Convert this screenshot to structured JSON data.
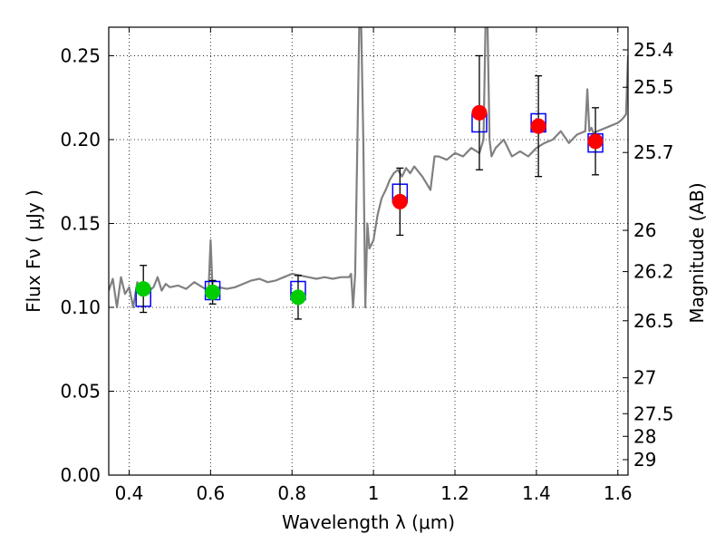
{
  "chart_data": {
    "type": "scatter",
    "xlabel": "Wavelength  λ (μm)",
    "ylabel": "Flux  Fν  ( μJy )",
    "ylabel_right": "Magnitude (AB)",
    "xlim": [
      0.35,
      1.625
    ],
    "ylim": [
      0.0,
      0.267
    ],
    "grid": true,
    "x_ticks": [
      0.4,
      0.6,
      0.8,
      1.0,
      1.2,
      1.4,
      1.6
    ],
    "x_tick_labels": [
      "0.4",
      "0.6",
      "0.8",
      "1",
      "1.2",
      "1.4",
      "1.6"
    ],
    "y_ticks": [
      0.0,
      0.05,
      0.1,
      0.15,
      0.2,
      0.25
    ],
    "y_tick_labels": [
      "0.00",
      "0.05",
      "0.10",
      "0.15",
      "0.20",
      "0.25"
    ],
    "right_ticks": [
      {
        "label": "25.4",
        "flux": 0.2535
      },
      {
        "label": "25.5",
        "flux": 0.2312
      },
      {
        "label": "25.7",
        "flux": 0.1923
      },
      {
        "label": "26",
        "flux": 0.1459
      },
      {
        "label": "26.2",
        "flux": 0.1213
      },
      {
        "label": "26.5",
        "flux": 0.092
      },
      {
        "label": "27",
        "flux": 0.058
      },
      {
        "label": "27.5",
        "flux": 0.0366
      },
      {
        "label": "28",
        "flux": 0.0231
      },
      {
        "label": "29",
        "flux": 0.0092
      }
    ],
    "series": [
      {
        "kind": "line",
        "color": "#808080",
        "x": [
          0.35,
          0.36,
          0.37,
          0.38,
          0.39,
          0.4,
          0.41,
          0.42,
          0.43,
          0.44,
          0.45,
          0.46,
          0.47,
          0.48,
          0.49,
          0.5,
          0.52,
          0.54,
          0.56,
          0.58,
          0.595,
          0.6,
          0.605,
          0.61,
          0.62,
          0.64,
          0.66,
          0.68,
          0.7,
          0.72,
          0.74,
          0.76,
          0.78,
          0.8,
          0.82,
          0.84,
          0.86,
          0.88,
          0.9,
          0.92,
          0.94,
          0.945,
          0.95,
          0.955,
          0.96,
          0.965,
          0.97,
          0.975,
          0.98,
          0.985,
          0.99,
          1.0,
          1.01,
          1.02,
          1.03,
          1.04,
          1.05,
          1.06,
          1.07,
          1.08,
          1.09,
          1.1,
          1.12,
          1.14,
          1.15,
          1.16,
          1.18,
          1.2,
          1.22,
          1.24,
          1.26,
          1.27,
          1.275,
          1.28,
          1.285,
          1.29,
          1.3,
          1.32,
          1.34,
          1.36,
          1.38,
          1.4,
          1.42,
          1.44,
          1.46,
          1.48,
          1.5,
          1.52,
          1.525,
          1.53,
          1.535,
          1.54,
          1.56,
          1.58,
          1.6,
          1.61,
          1.62,
          1.625
        ],
        "values": [
          0.11,
          0.117,
          0.1,
          0.118,
          0.108,
          0.112,
          0.1,
          0.115,
          0.107,
          0.113,
          0.11,
          0.112,
          0.118,
          0.11,
          0.114,
          0.112,
          0.113,
          0.111,
          0.115,
          0.112,
          0.11,
          0.14,
          0.11,
          0.108,
          0.112,
          0.111,
          0.112,
          0.114,
          0.116,
          0.117,
          0.115,
          0.116,
          0.118,
          0.12,
          0.119,
          0.118,
          0.117,
          0.118,
          0.117,
          0.118,
          0.118,
          0.12,
          0.1,
          0.12,
          0.19,
          0.267,
          0.267,
          0.2,
          0.1,
          0.15,
          0.135,
          0.14,
          0.155,
          0.165,
          0.17,
          0.176,
          0.18,
          0.182,
          0.178,
          0.183,
          0.18,
          0.184,
          0.178,
          0.17,
          0.19,
          0.19,
          0.188,
          0.192,
          0.19,
          0.195,
          0.192,
          0.2,
          0.267,
          0.267,
          0.2,
          0.19,
          0.195,
          0.2,
          0.19,
          0.193,
          0.19,
          0.195,
          0.198,
          0.2,
          0.205,
          0.198,
          0.203,
          0.205,
          0.23,
          0.205,
          0.207,
          0.204,
          0.206,
          0.208,
          0.21,
          0.212,
          0.215,
          0.25
        ]
      },
      {
        "kind": "open-squares",
        "color": "#0000ff",
        "x": [
          0.435,
          0.605,
          0.815,
          1.065,
          1.26,
          1.405,
          1.545
        ],
        "values": [
          0.106,
          0.11,
          0.11,
          0.168,
          0.21,
          0.21,
          0.198
        ]
      },
      {
        "kind": "points",
        "color": "#00cc00",
        "x": [
          0.435,
          0.605,
          0.815
        ],
        "values": [
          0.111,
          0.109,
          0.106
        ],
        "yerr": [
          0.014,
          0.007,
          0.013
        ]
      },
      {
        "kind": "points",
        "color": "#ff0000",
        "x": [
          1.065,
          1.26,
          1.405,
          1.545
        ],
        "values": [
          0.163,
          0.216,
          0.208,
          0.199
        ],
        "yerr": [
          0.02,
          0.034,
          0.03,
          0.02
        ]
      }
    ]
  }
}
